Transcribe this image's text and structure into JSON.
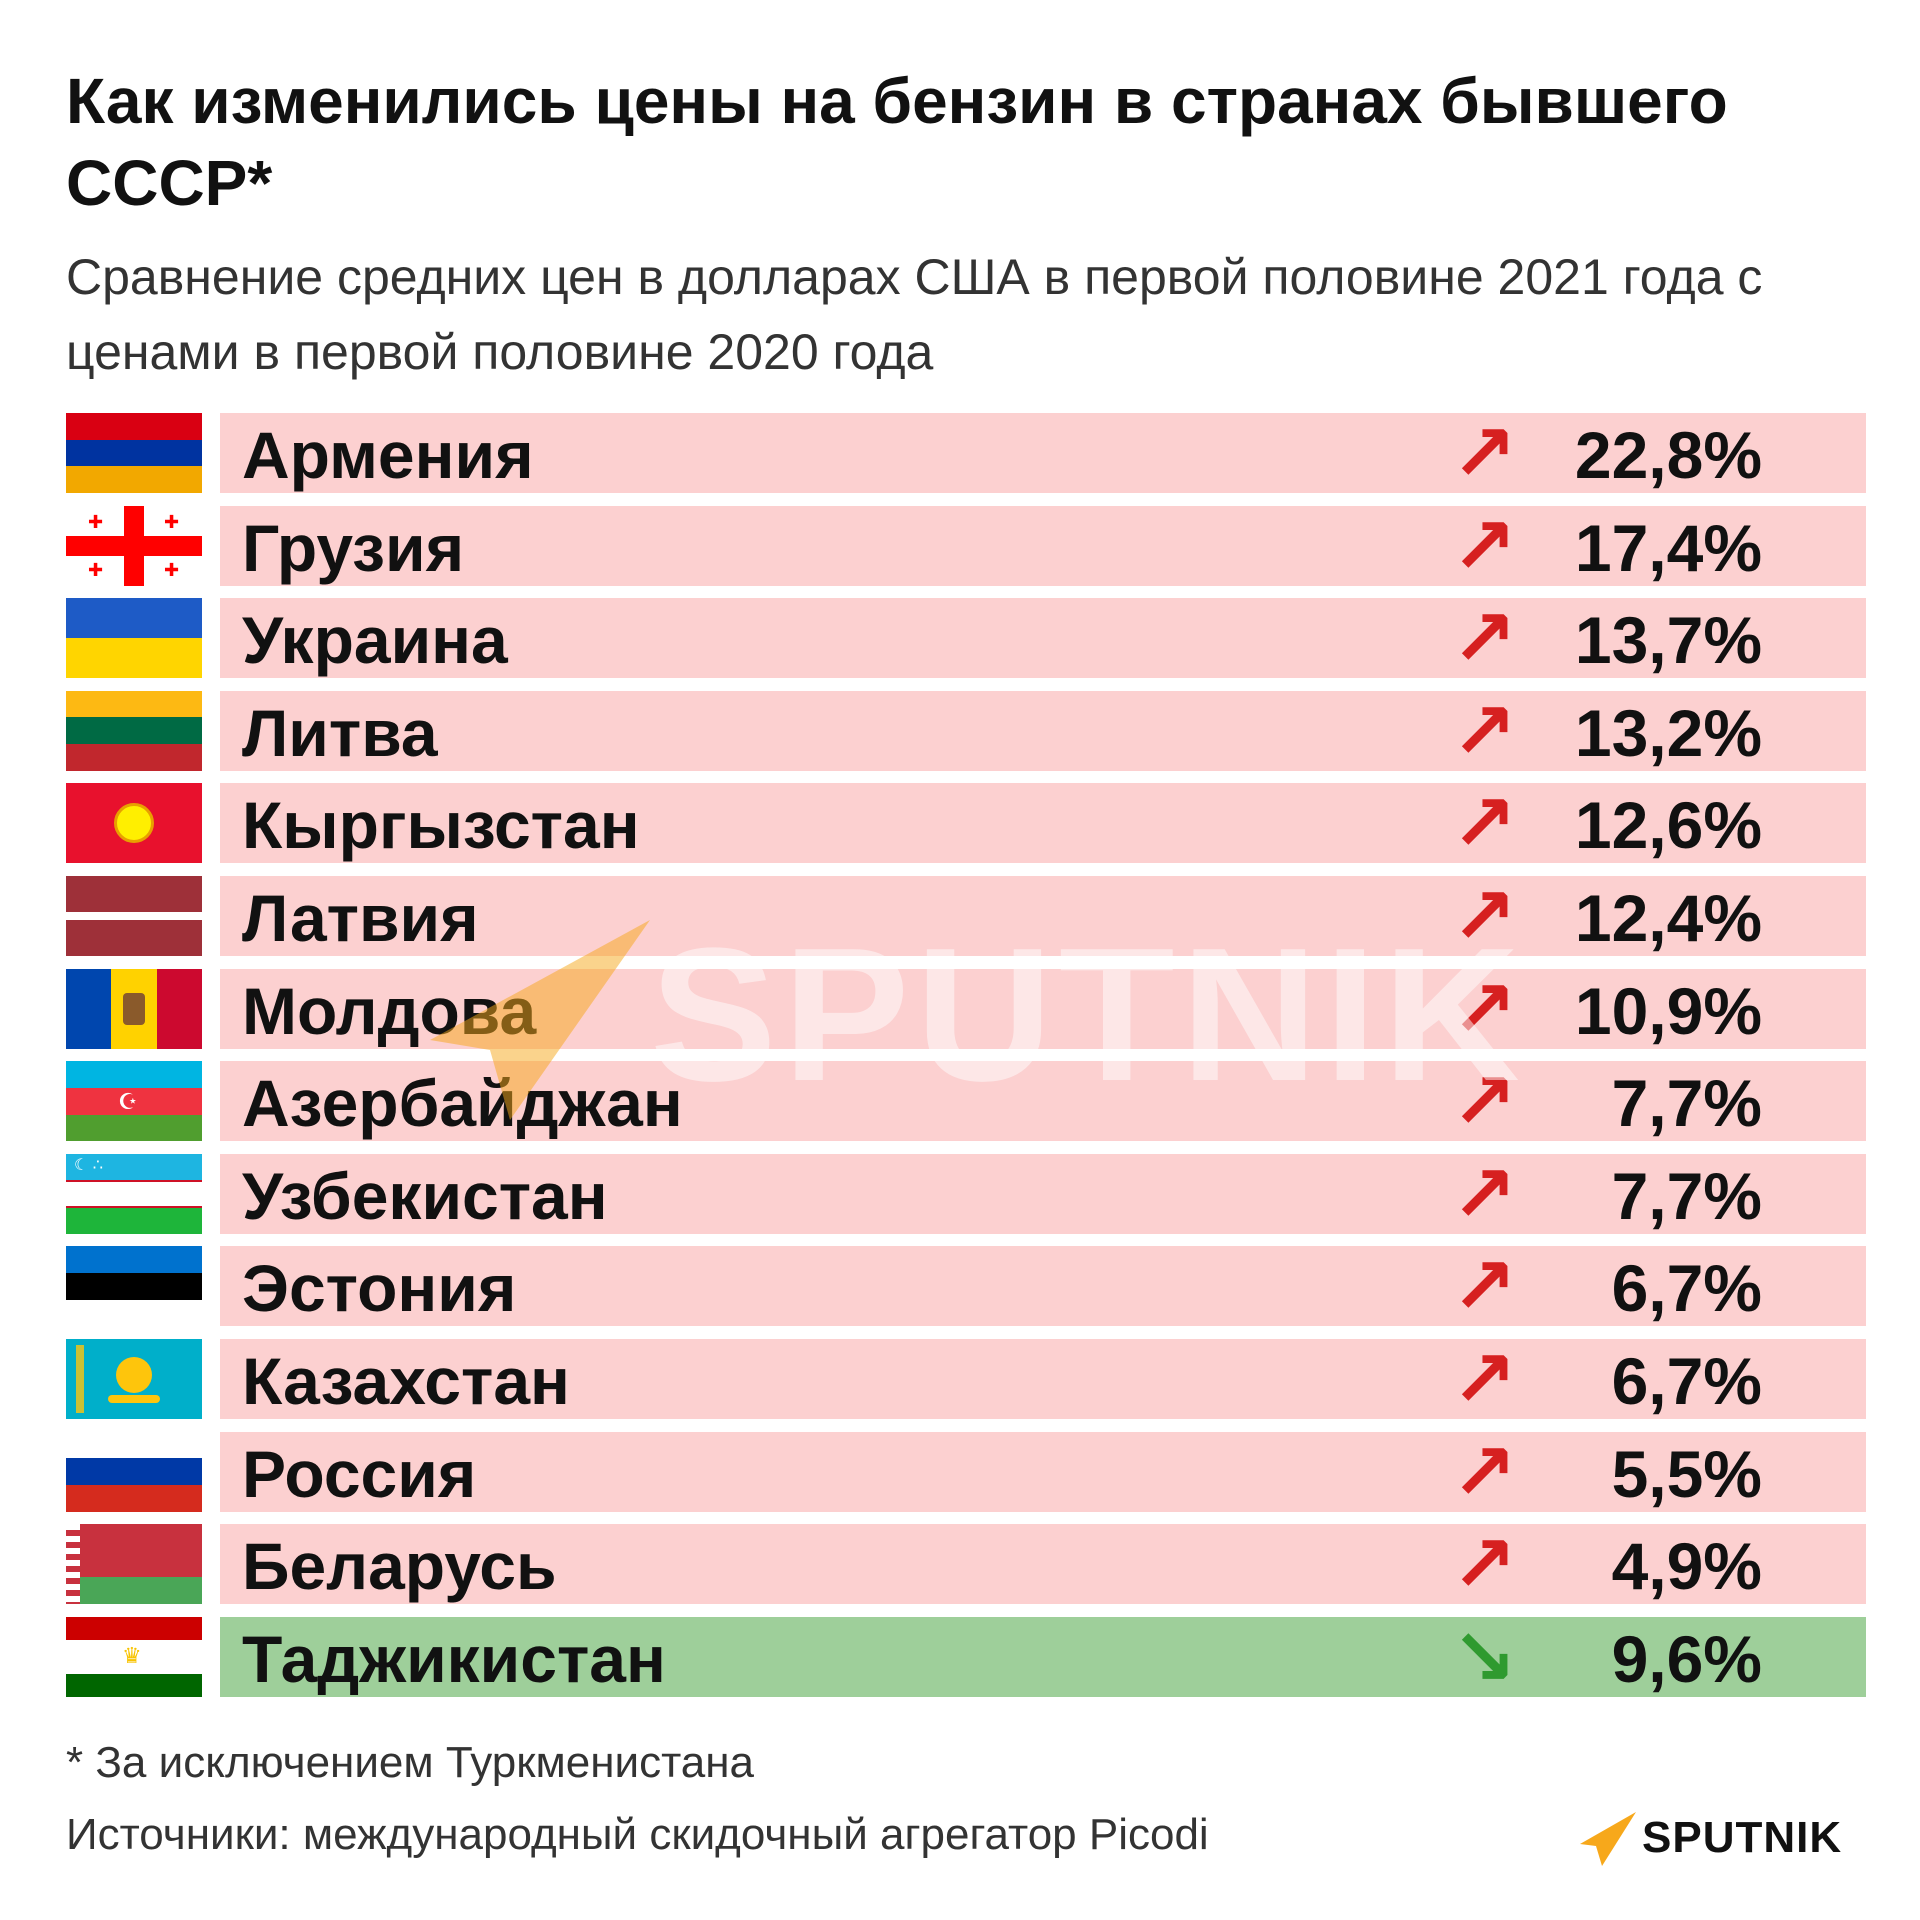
{
  "title": "Как изменились цены на бензин в странах бывшего СССР*",
  "subtitle": "Сравнение средних цен в долларах США в первой половине 2021 года с ценами в первой половине 2020 года",
  "footnote": "* За исключением Туркменистана",
  "sources": "Источники: международный скидочный агрегатор Picodi",
  "logo_text": "SPUTNIK",
  "watermark_text": "SPUTNIK",
  "colors": {
    "increase_bar": "#fcd0d0",
    "decrease_bar": "#9ecf9a",
    "increase_arrow": "#d62020",
    "decrease_arrow": "#2f9a2f",
    "brand_orange": "#f7a81b"
  },
  "chart_data": {
    "type": "table",
    "columns": [
      "country",
      "direction",
      "change"
    ],
    "rows": [
      {
        "country": "Армения",
        "direction": "up",
        "value": 22.8,
        "label": "22,8%",
        "flag": [
          "#d90012",
          "#0033a0",
          "#f2a800"
        ]
      },
      {
        "country": "Грузия",
        "direction": "up",
        "value": 17.4,
        "label": "17,4%",
        "flag": "georgia"
      },
      {
        "country": "Украина",
        "direction": "up",
        "value": 13.7,
        "label": "13,7%",
        "flag": [
          "#1e5bc6",
          "#ffd500"
        ]
      },
      {
        "country": "Литва",
        "direction": "up",
        "value": 13.2,
        "label": "13,2%",
        "flag": [
          "#fdb913",
          "#006a44",
          "#c1272d"
        ]
      },
      {
        "country": "Кыргызстан",
        "direction": "up",
        "value": 12.6,
        "label": "12,6%",
        "flag": "kyrgyzstan"
      },
      {
        "country": "Латвия",
        "direction": "up",
        "value": 12.4,
        "label": "12,4%",
        "flag": "latvia"
      },
      {
        "country": "Молдова",
        "direction": "up",
        "value": 10.9,
        "label": "10,9%",
        "flag": "moldova"
      },
      {
        "country": "Азербайджан",
        "direction": "up",
        "value": 7.7,
        "label": "7,7%",
        "flag": "azerbaijan"
      },
      {
        "country": "Узбекистан",
        "direction": "up",
        "value": 7.7,
        "label": "7,7%",
        "flag": "uzbekistan"
      },
      {
        "country": "Эстония",
        "direction": "up",
        "value": 6.7,
        "label": "6,7%",
        "flag": [
          "#0072ce",
          "#000000",
          "#ffffff"
        ]
      },
      {
        "country": "Казахстан",
        "direction": "up",
        "value": 6.7,
        "label": "6,7%",
        "flag": "kazakhstan"
      },
      {
        "country": "Россия",
        "direction": "up",
        "value": 5.5,
        "label": "5,5%",
        "flag": [
          "#ffffff",
          "#0039a6",
          "#d52b1e"
        ]
      },
      {
        "country": "Беларусь",
        "direction": "up",
        "value": 4.9,
        "label": "4,9%",
        "flag": "belarus"
      },
      {
        "country": "Таджикистан",
        "direction": "down",
        "value": -9.6,
        "label": "9,6%",
        "flag": "tajikistan"
      }
    ]
  }
}
